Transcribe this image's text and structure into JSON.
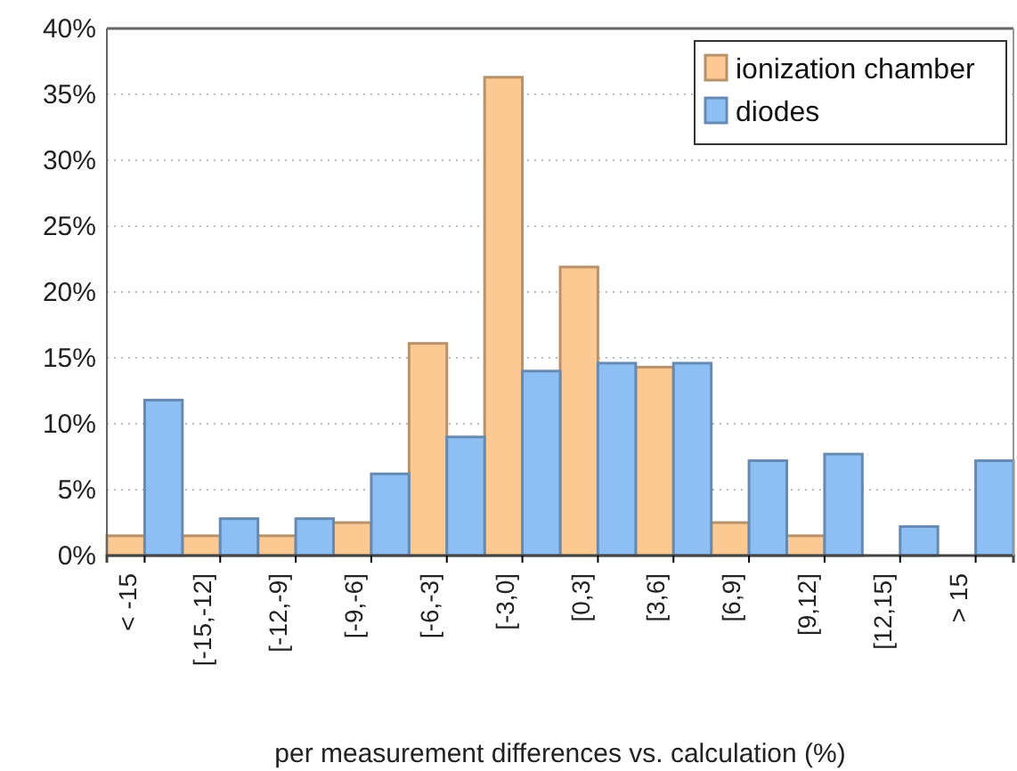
{
  "chart_data": {
    "type": "bar",
    "xlabel": "per measurement differences vs. calculation (%)",
    "categories": [
      "< -15",
      "[-15,-12]",
      "[-12,-9]",
      "[-9,-6]",
      "[-6,-3]",
      "[-3,0]",
      "[0,3]",
      "[3,6]",
      "[6,9]",
      "[9,12]",
      "[12,15]",
      "> 15"
    ],
    "series": [
      {
        "name": "ionization chamber",
        "color": "#fcc992",
        "values": [
          1.5,
          1.5,
          1.5,
          2.5,
          16.1,
          36.3,
          21.9,
          14.3,
          2.5,
          1.5,
          0,
          0
        ]
      },
      {
        "name": "diodes",
        "color": "#8dbff5",
        "values": [
          11.8,
          2.8,
          2.8,
          6.2,
          9.0,
          14.0,
          14.6,
          14.6,
          7.2,
          7.7,
          2.2,
          7.2
        ]
      }
    ],
    "ylim": [
      0,
      40
    ],
    "yticks": [
      {
        "value": 0,
        "label": "0%"
      },
      {
        "value": 5,
        "label": "5%"
      },
      {
        "value": 10,
        "label": "10%"
      },
      {
        "value": 15,
        "label": "15%"
      },
      {
        "value": 20,
        "label": "20%"
      },
      {
        "value": 25,
        "label": "25%"
      },
      {
        "value": 30,
        "label": "30%"
      },
      {
        "value": 35,
        "label": "35%"
      },
      {
        "value": 40,
        "label": "40%"
      }
    ],
    "grid": "y",
    "legend": "top right"
  }
}
